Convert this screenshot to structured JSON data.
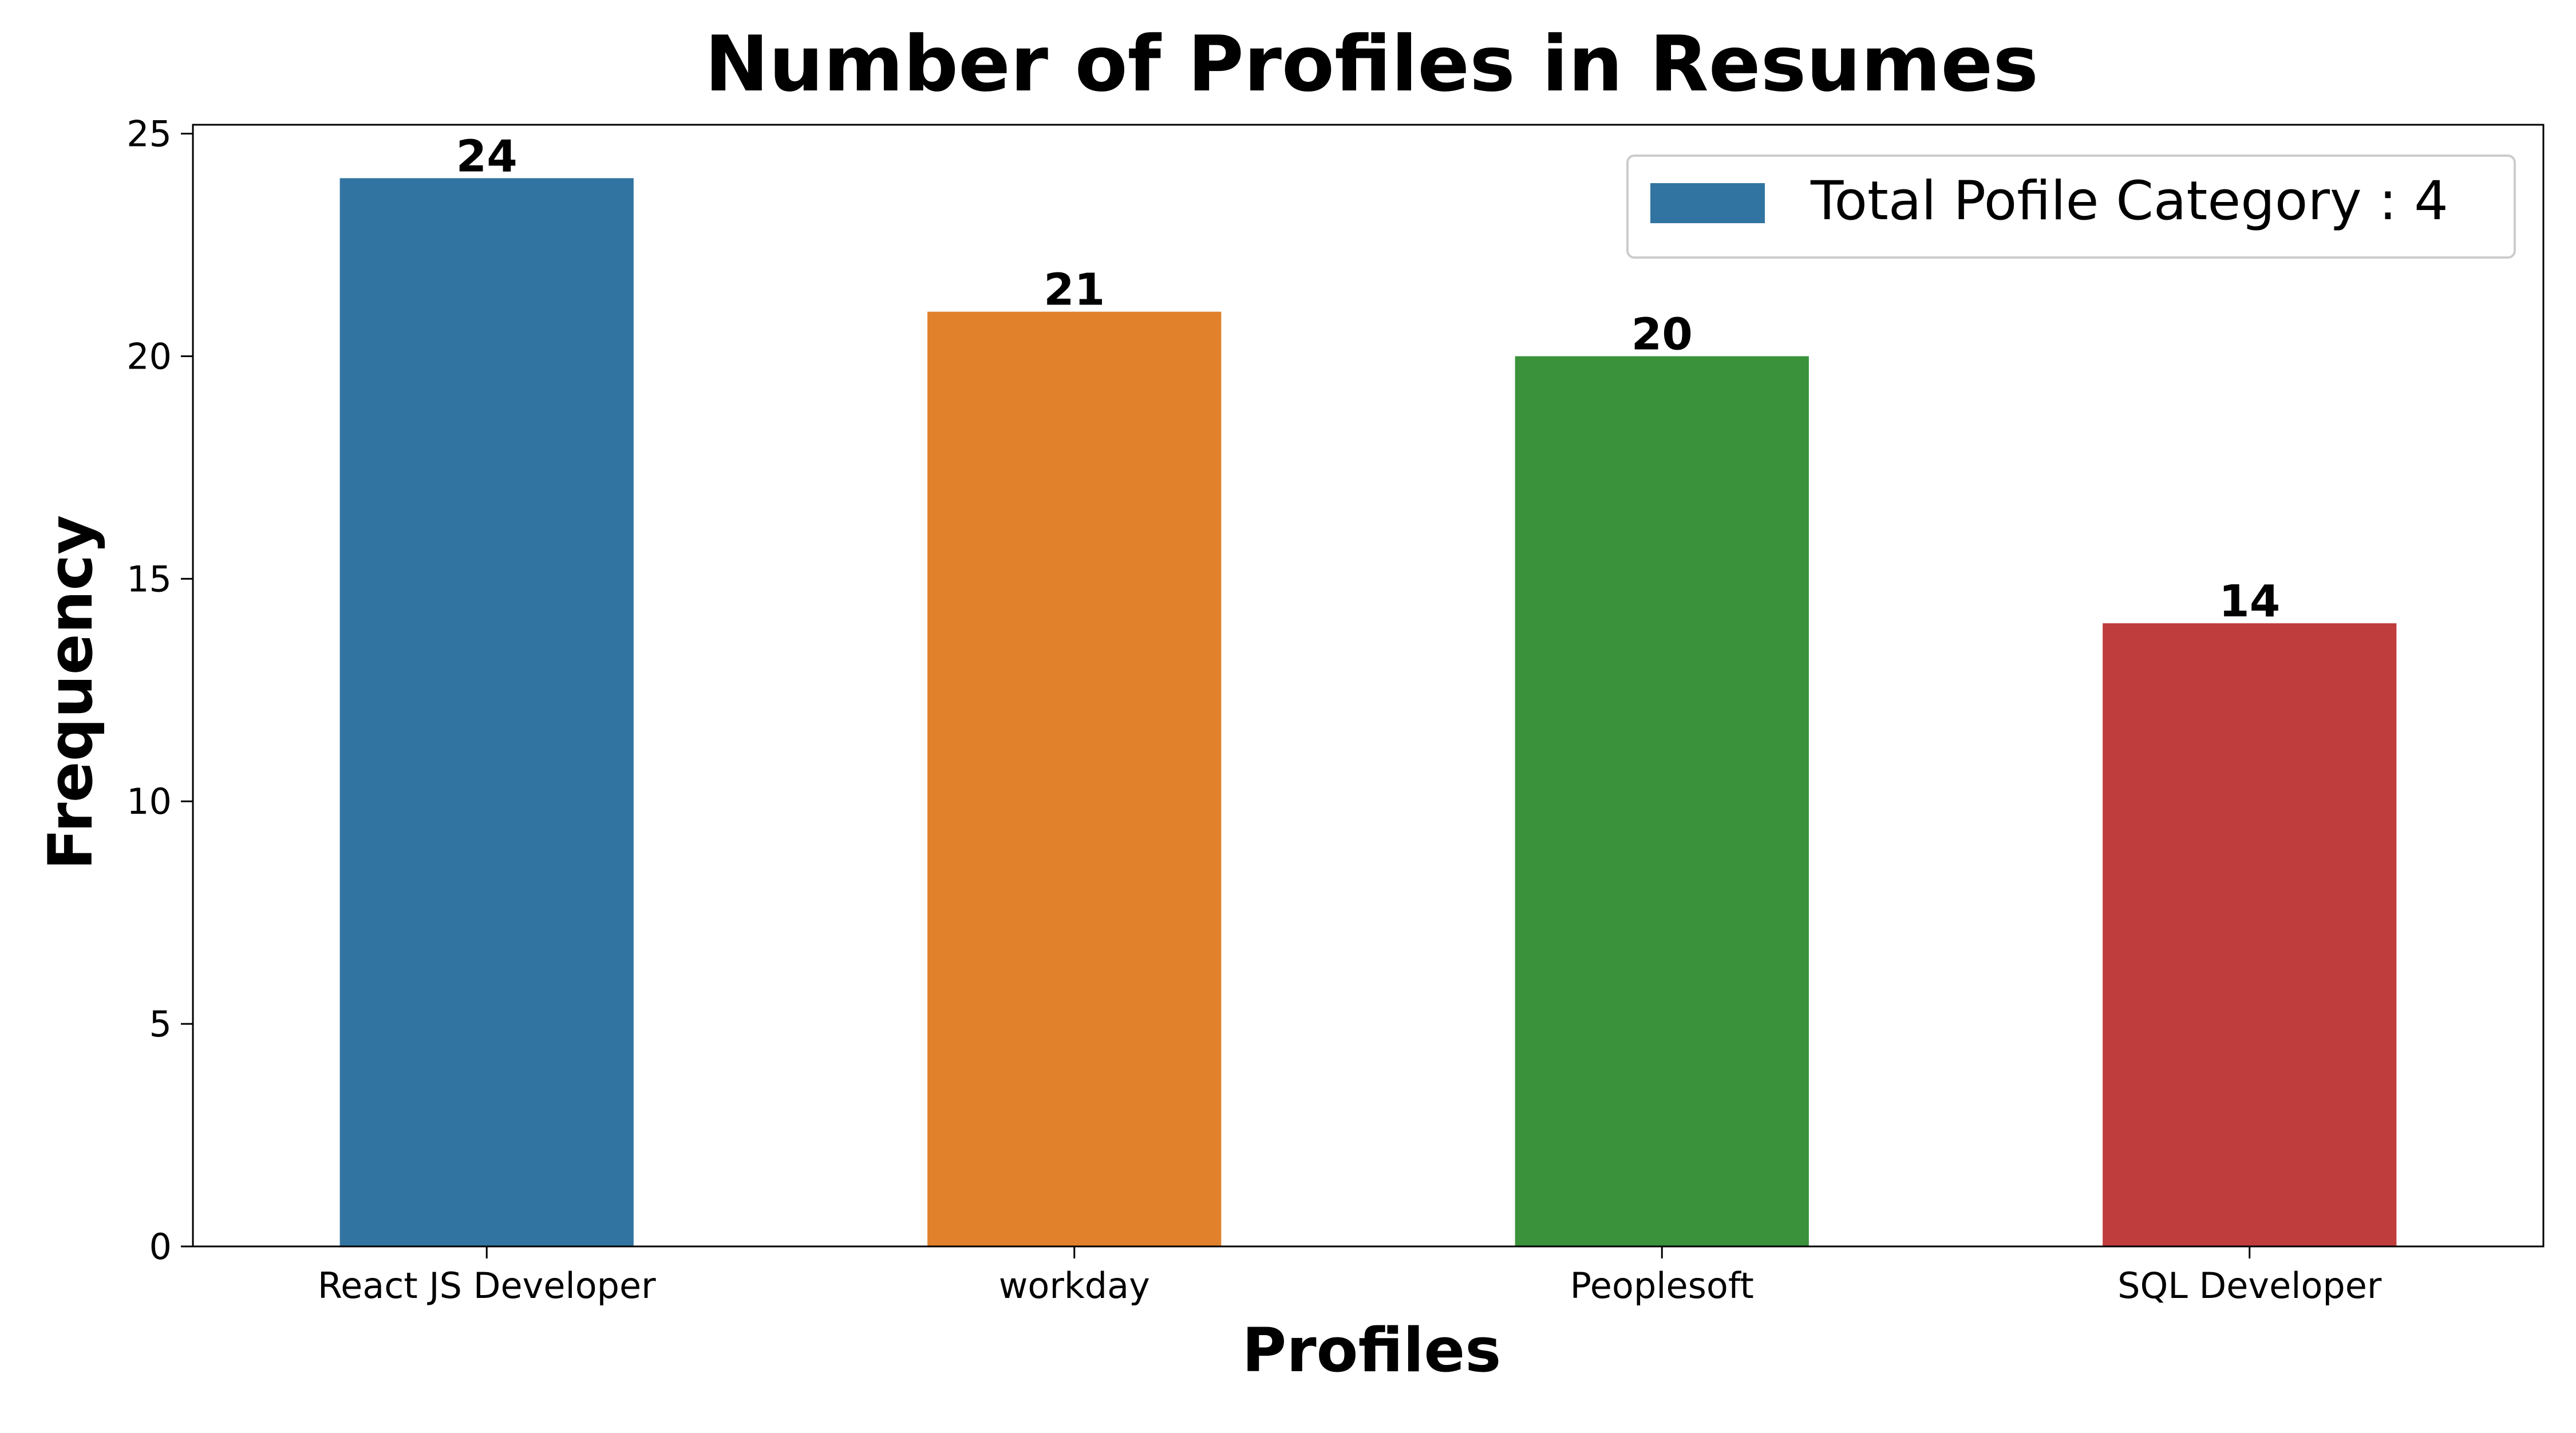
{
  "chart_data": {
    "type": "bar",
    "title": "Number of Profiles in Resumes",
    "xlabel": "Profiles",
    "ylabel": "Frequency",
    "categories": [
      "React JS Developer",
      "workday",
      "Peoplesoft",
      "SQL Developer"
    ],
    "values": [
      24,
      21,
      20,
      14
    ],
    "colors": [
      "#3274a1",
      "#e1812c",
      "#3a923a",
      "#c03d3e"
    ],
    "ylim": [
      0,
      25.2
    ],
    "yticks": [
      0,
      5,
      10,
      15,
      20,
      25
    ],
    "grid": false,
    "legend": {
      "position": "top-right",
      "entries": [
        {
          "label": "Total Pofile Category : 4",
          "color": "#3274a1"
        }
      ]
    }
  }
}
